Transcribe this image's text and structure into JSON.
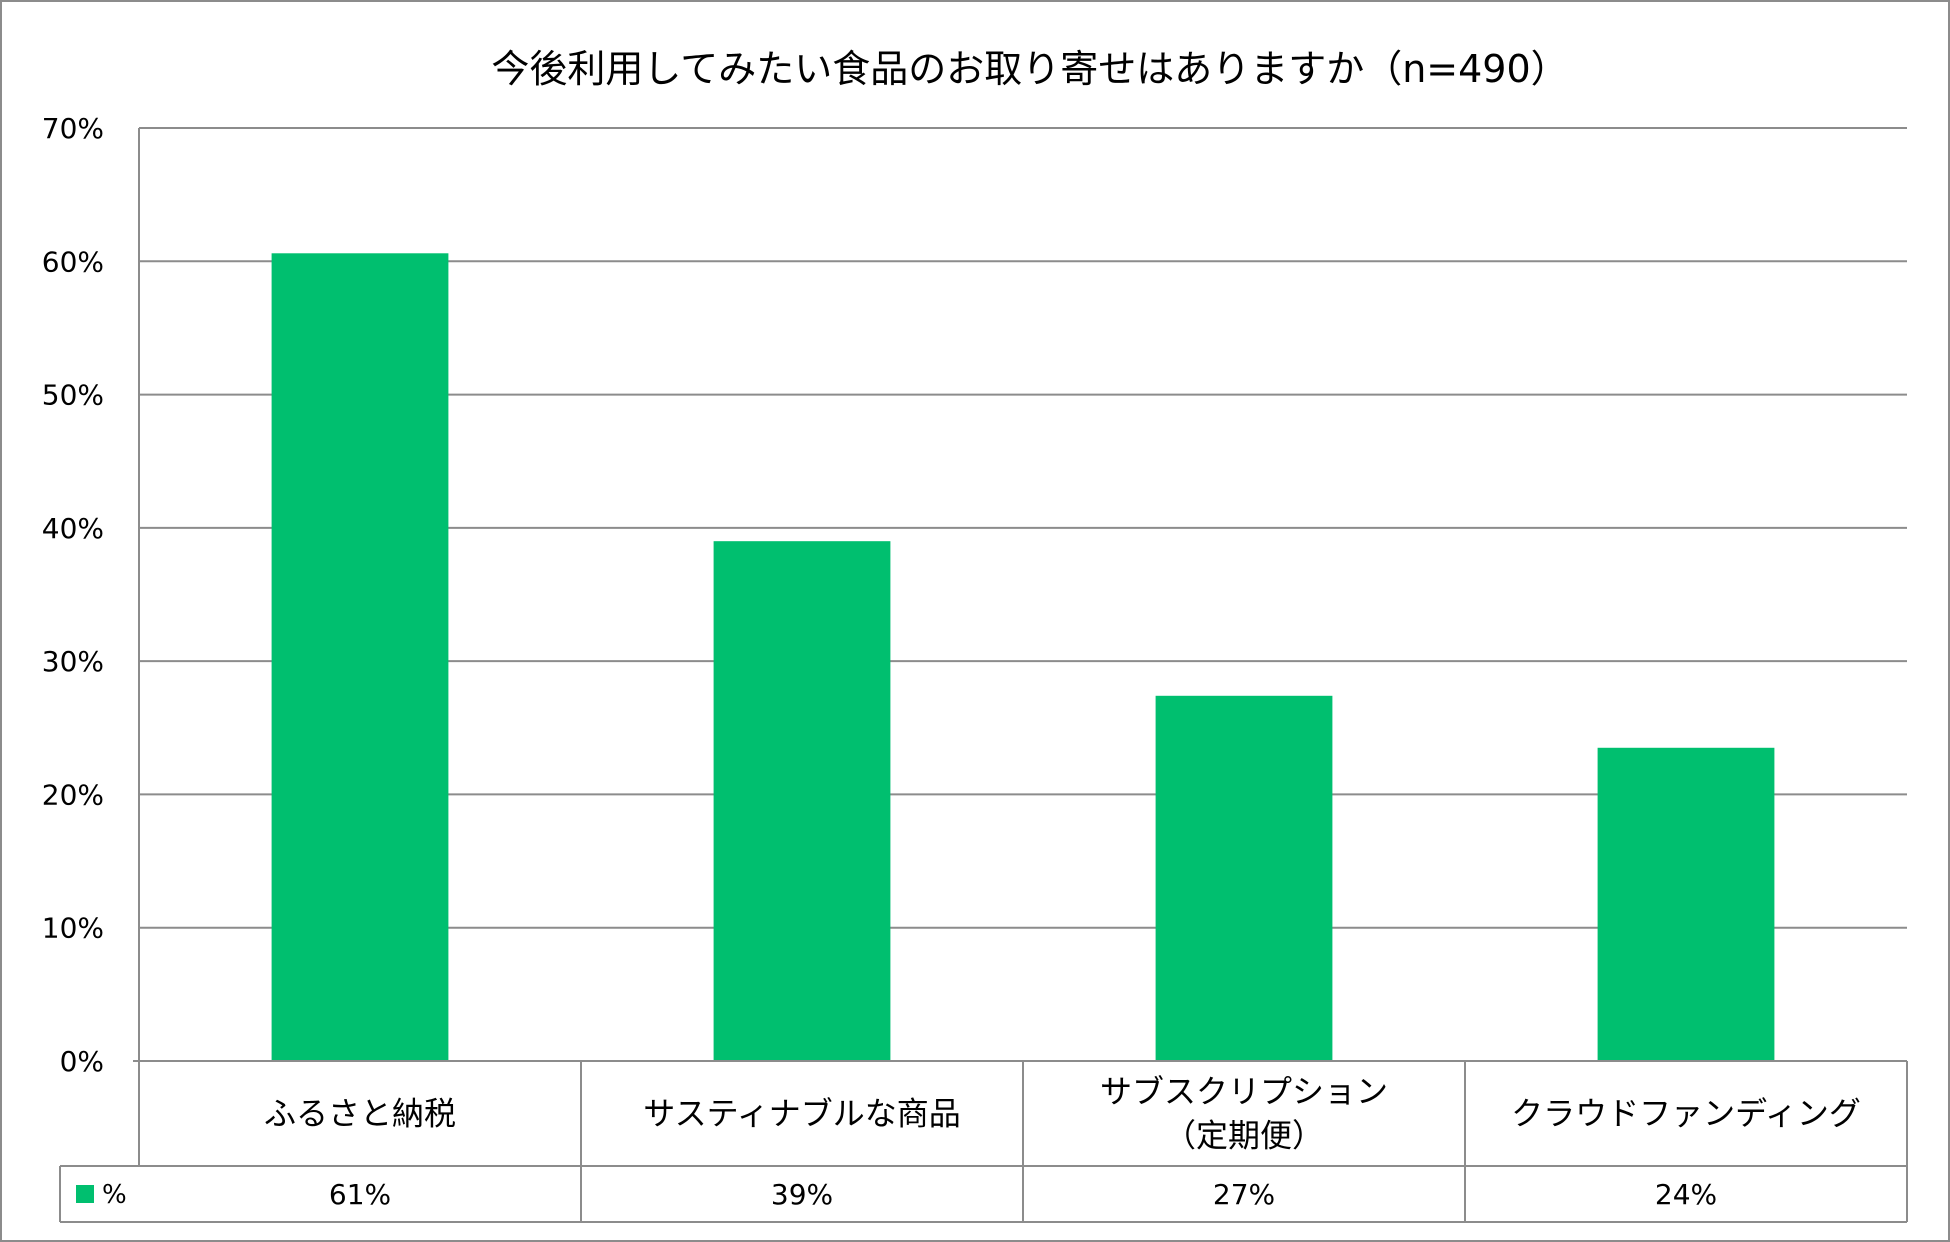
{
  "chart_data": {
    "type": "bar",
    "title": "今後利用してみたい食品のお取り寄せはありますか（n=490）",
    "xlabel": "",
    "ylabel": "",
    "ylim": [
      0,
      70
    ],
    "yticks": [
      0,
      10,
      20,
      30,
      40,
      50,
      60,
      70
    ],
    "ytick_labels": [
      "0%",
      "10%",
      "20%",
      "30%",
      "40%",
      "50%",
      "60%",
      "70%"
    ],
    "grid": true,
    "categories": [
      [
        "ふるさと納税"
      ],
      [
        "サスティナブルな商品"
      ],
      [
        "サブスクリプション",
        "（定期便）"
      ],
      [
        "クラウドファンディング"
      ]
    ],
    "series": [
      {
        "name": "%",
        "color": "#00bf6f",
        "values": [
          60.6,
          39.0,
          27.4,
          23.5
        ],
        "table_labels": [
          "61%",
          "39%",
          "27%",
          "24%"
        ]
      }
    ],
    "legend": "data-table"
  }
}
